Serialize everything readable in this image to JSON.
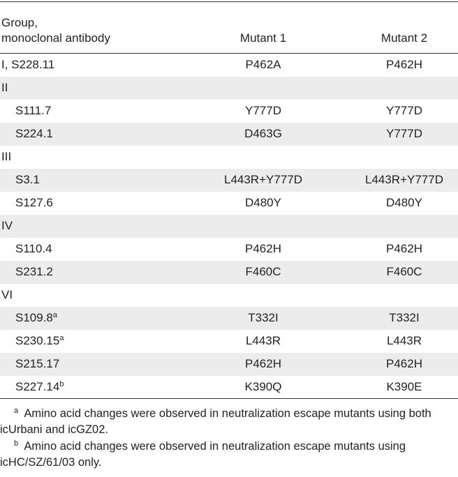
{
  "header": {
    "group": [
      "Group,",
      "monoclonal antibody"
    ],
    "mutant1": "Mutant 1",
    "mutant2": "Mutant 2"
  },
  "groups": [
    {
      "name": "I, S228.11",
      "mutant1": "P462A",
      "mutant2": "P462H"
    },
    {
      "name": "II",
      "antibodies": [
        {
          "name": "S111.7",
          "mutant1": "Y777D",
          "mutant2": "Y777D"
        },
        {
          "name": "S224.1",
          "mutant1": "D463G",
          "mutant2": "Y777D"
        }
      ]
    },
    {
      "name": "III",
      "antibodies": [
        {
          "name": "S3.1",
          "mutant1": "L443R+Y777D",
          "mutant2": "L443R+Y777D"
        },
        {
          "name": "S127.6",
          "mutant1": "D480Y",
          "mutant2": "D480Y"
        }
      ]
    },
    {
      "name": "IV",
      "antibodies": [
        {
          "name": "S110.4",
          "mutant1": "P462H",
          "mutant2": "P462H"
        },
        {
          "name": "S231.2",
          "mutant1": "F460C",
          "mutant2": "F460C"
        }
      ]
    },
    {
      "name": "VI",
      "antibodies": [
        {
          "name": "S109.8",
          "sup": "a",
          "mutant1": "T332I",
          "mutant2": "T332I"
        },
        {
          "name": "S230.15",
          "sup": "a",
          "mutant1": "L443R",
          "mutant2": "L443R"
        },
        {
          "name": "S215.17",
          "mutant1": "P462H",
          "mutant2": "P462H"
        },
        {
          "name": "S227.14",
          "sup": "b",
          "mutant1": "K390Q",
          "mutant2": "K390E"
        }
      ]
    }
  ],
  "footnotes": [
    {
      "marker": "a",
      "text": "Amino acid changes were observed in neutralization escape mutants using both icUrbani and icGZ02."
    },
    {
      "marker": "b",
      "text": "Amino acid changes were observed in neutralization escape mutants using icHC/SZ/61/03 only."
    }
  ]
}
